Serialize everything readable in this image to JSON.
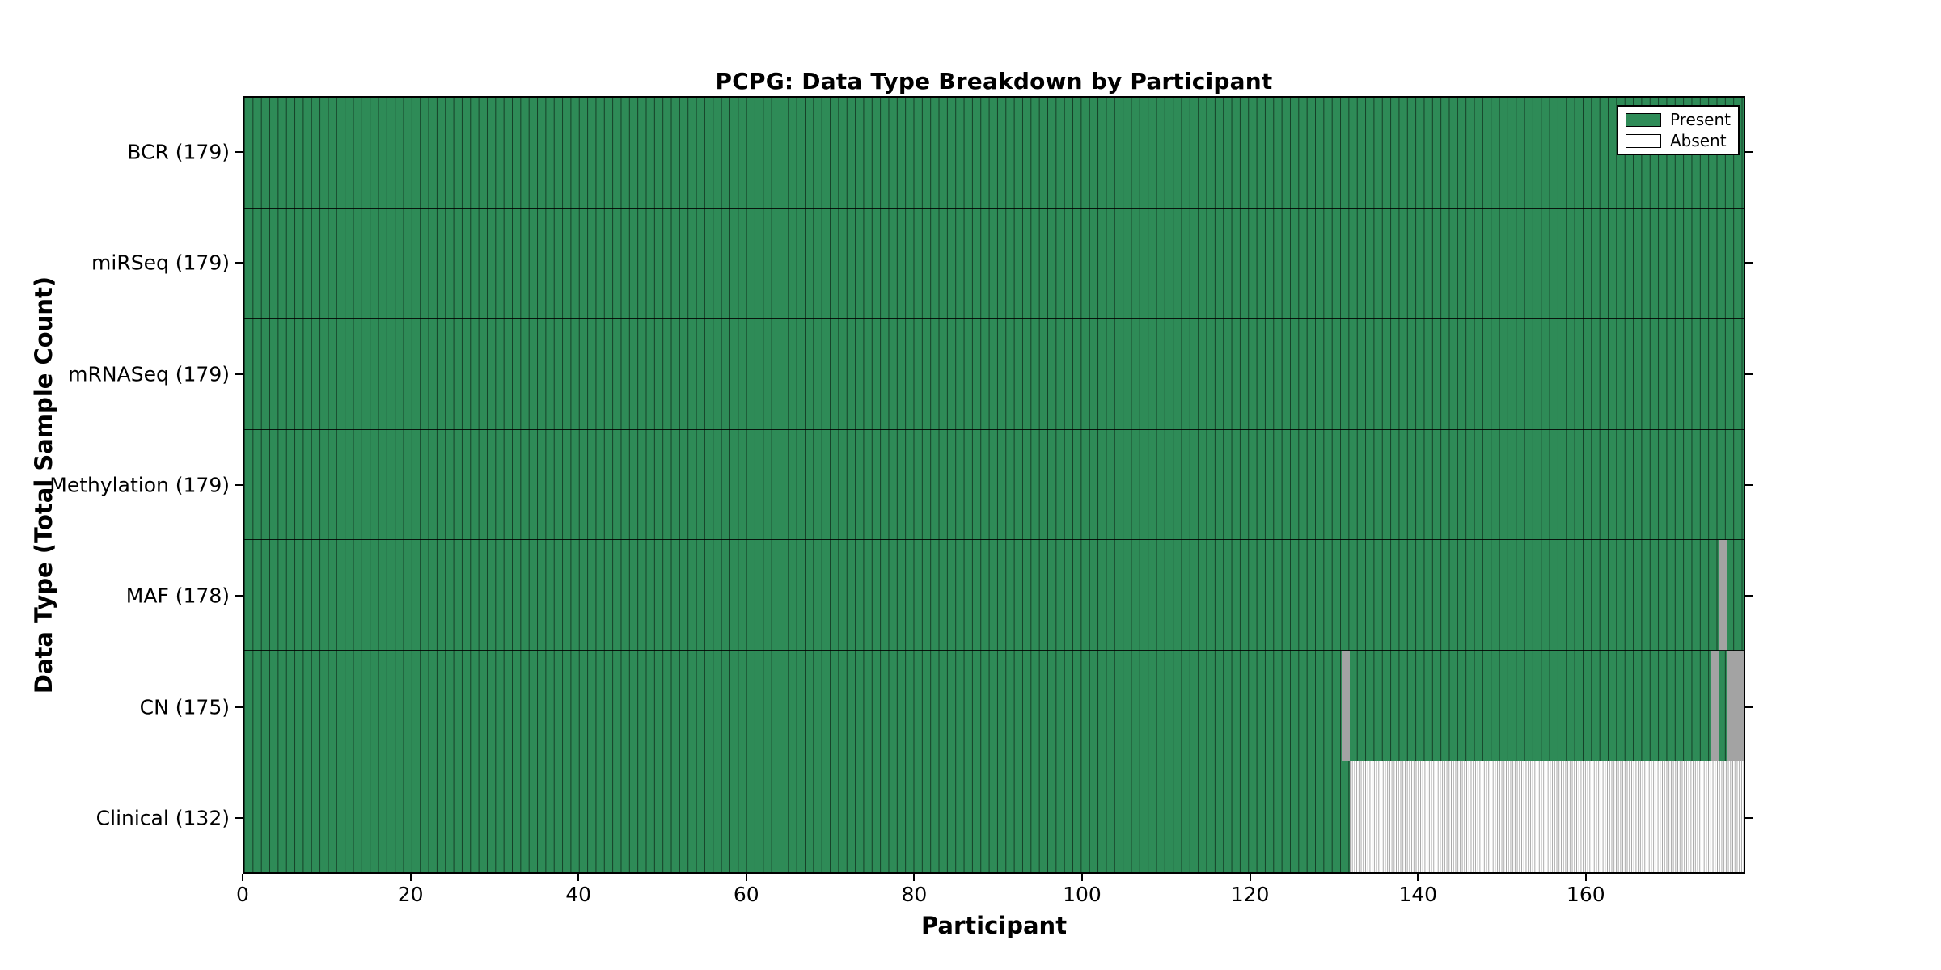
{
  "figure": {
    "title": "PCPG: Data Type Breakdown by Participant",
    "xlabel": "Participant",
    "ylabel": "Data Type (Total Sample Count)"
  },
  "legend": {
    "items": [
      {
        "label": "Present",
        "color": "#2e8b57"
      },
      {
        "label": "Absent",
        "color": "#ffffff"
      }
    ],
    "position": "upper right"
  },
  "chart_data": {
    "type": "heatmap",
    "title": "PCPG: Data Type Breakdown by Participant",
    "xlabel": "Participant",
    "ylabel": "Data Type (Total Sample Count)",
    "x_ticks": [
      0,
      20,
      40,
      60,
      80,
      100,
      120,
      140,
      160
    ],
    "xlim": [
      0,
      179
    ],
    "n_participants": 179,
    "legend": [
      "Present",
      "Absent"
    ],
    "legend_position": "upper right",
    "colors": {
      "present": "#2e8b57",
      "absent": "#ffffff",
      "present_cell_border": "rgba(0,0,0,0.55)",
      "absent_cell_border": "#a3a3a3"
    },
    "rows": [
      {
        "label": "BCR (179)",
        "data_type": "BCR",
        "present_count": 179,
        "absent_ranges": []
      },
      {
        "label": "miRSeq (179)",
        "data_type": "miRSeq",
        "present_count": 179,
        "absent_ranges": []
      },
      {
        "label": "mRNASeq (179)",
        "data_type": "mRNASeq",
        "present_count": 179,
        "absent_ranges": []
      },
      {
        "label": "Methylation (179)",
        "data_type": "Methylation",
        "present_count": 179,
        "absent_ranges": []
      },
      {
        "label": "MAF (178)",
        "data_type": "MAF",
        "present_count": 178,
        "absent_ranges": [
          [
            176,
            176
          ]
        ]
      },
      {
        "label": "CN (175)",
        "data_type": "CN",
        "present_count": 175,
        "absent_ranges": [
          [
            131,
            131
          ],
          [
            175,
            175
          ],
          [
            177,
            178
          ]
        ]
      },
      {
        "label": "Clinical (132)",
        "data_type": "Clinical",
        "present_count": 132,
        "absent_ranges": [
          [
            132,
            178
          ]
        ]
      }
    ]
  }
}
